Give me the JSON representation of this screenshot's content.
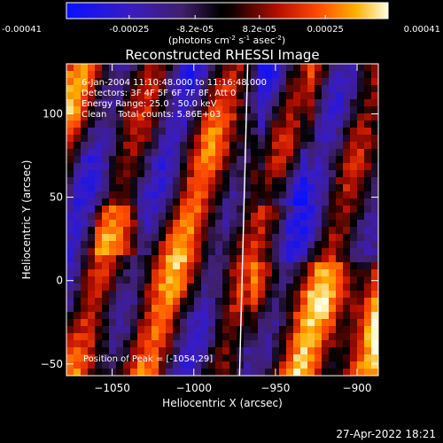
{
  "colorbar": {
    "ticks": [
      "-0.00041",
      "-0.00025",
      "-8.2e-05",
      "8.2e-05",
      "0.00025",
      "0.00041"
    ],
    "unit_main": "(photons cm",
    "unit_exp1": "-2",
    "unit_mid1": " s",
    "unit_exp2": "-1",
    "unit_mid2": " asec",
    "unit_exp3": "-2",
    "unit_end": ")",
    "min": -0.00041,
    "max": 0.00041
  },
  "chart_data": {
    "type": "heatmap",
    "title": "Reconstructed RHESSI Image",
    "xlabel": "Heliocentric X (arcsec)",
    "ylabel": "Heliocentric Y (arcsec)",
    "xlim": [
      -1078,
      -887
    ],
    "ylim": [
      -57,
      130
    ],
    "x_ticks": [
      -1050,
      -1000,
      -950,
      -900
    ],
    "y_ticks": [
      -50,
      0,
      50,
      100
    ],
    "x_tick_labels": [
      "−1050",
      "−1000",
      "−950",
      "−900"
    ],
    "y_tick_labels": [
      "−50",
      "0",
      "50",
      "100"
    ],
    "annotations": [
      "6-Jan-2004 11:10:48.000 to 11:16:48.000",
      "Detectors: 3F 4F 5F 6F 7F 8F, Att 0",
      "Energy Range: 25.0 - 50.0 keV",
      "Clean    Total counts: 5.86E+03"
    ],
    "peak_label": "Position of Peak = [-1054,29]",
    "limb_x_at_top": -967,
    "limb_x_at_bottom": -972
  },
  "footer": {
    "date": "27-Apr-2022 18:21"
  }
}
